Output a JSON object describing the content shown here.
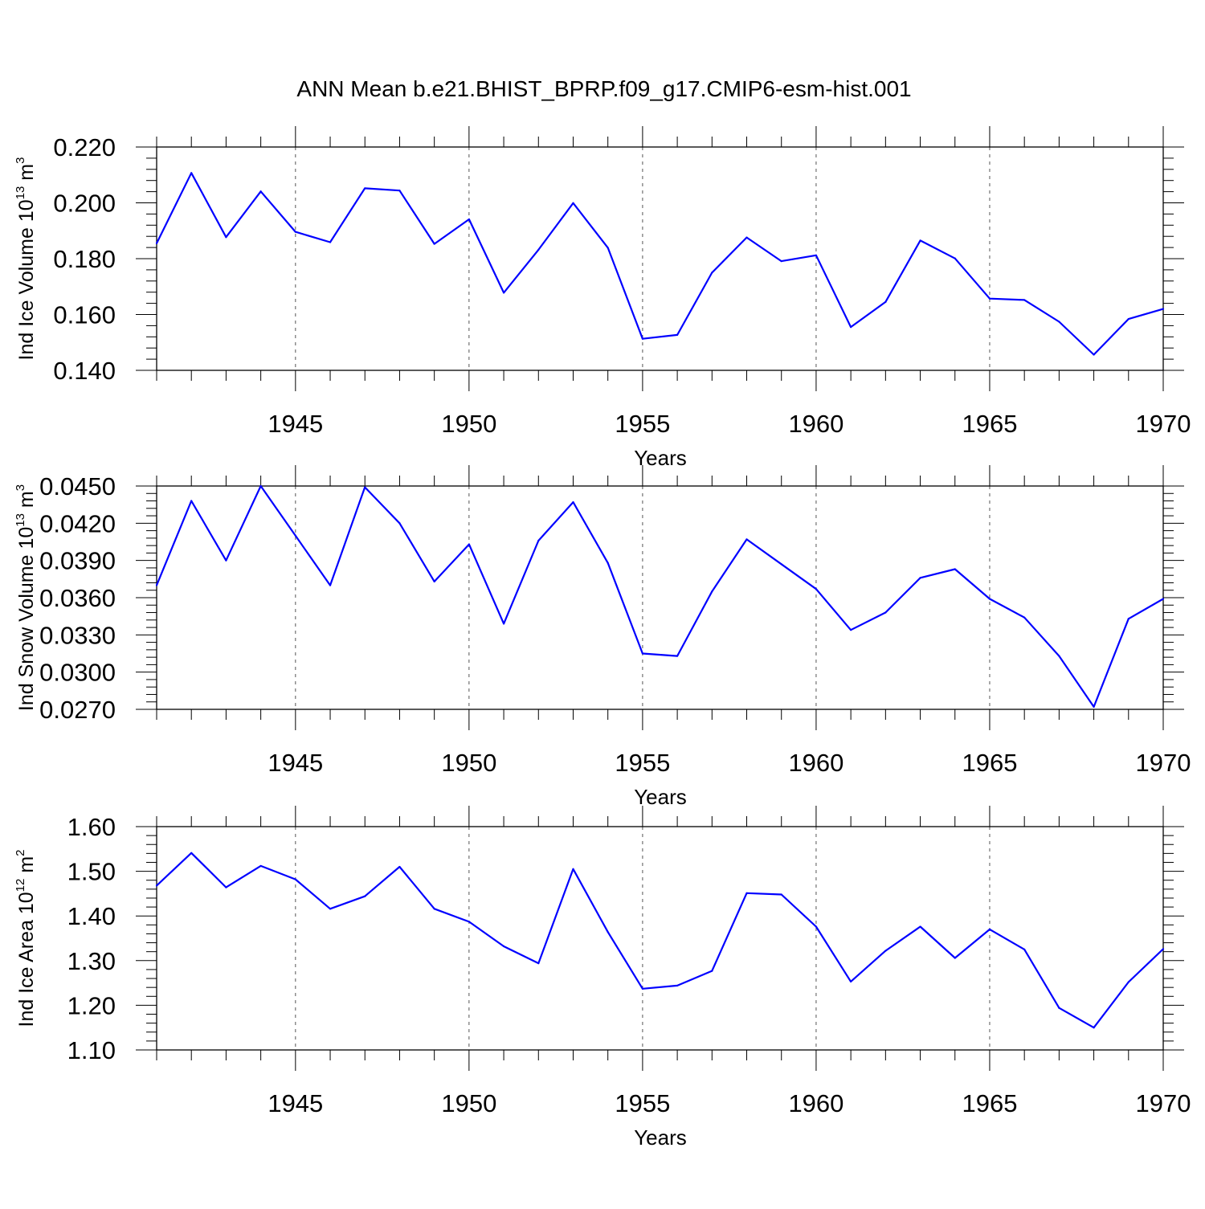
{
  "title": "ANN Mean b.e21.BHIST_BPRP.f09_g17.CMIP6-esm-hist.001",
  "colors": {
    "line": "#0000ff",
    "axis": "#000000",
    "grid": "#555555"
  },
  "chart_data": [
    {
      "type": "line",
      "ylabel": {
        "text": "Ind Ice Volume 10",
        "sup": "13",
        "unit": " m",
        "unit_sup": "3"
      },
      "xlabel": "Years",
      "xlim": [
        1941,
        1970
      ],
      "ylim": [
        0.14,
        0.22
      ],
      "yticks": [
        0.14,
        0.16,
        0.18,
        0.2,
        0.22
      ],
      "yticklabels": [
        "0.140",
        "0.160",
        "0.180",
        "0.200",
        "0.220"
      ],
      "xticks": [
        1945,
        1950,
        1955,
        1960,
        1965,
        1970
      ],
      "xticklabels": [
        "1945",
        "1950",
        "1955",
        "1960",
        "1965",
        "1970"
      ],
      "grid": "vertical dashed at major x ticks",
      "x": [
        1941,
        1942,
        1943,
        1944,
        1945,
        1946,
        1947,
        1948,
        1949,
        1950,
        1951,
        1952,
        1953,
        1954,
        1955,
        1956,
        1957,
        1958,
        1959,
        1960,
        1961,
        1962,
        1963,
        1964,
        1965,
        1966,
        1967,
        1968,
        1969,
        1970
      ],
      "series": [
        {
          "values": [
            0.1855,
            0.2107,
            0.1877,
            0.2041,
            0.1896,
            0.1859,
            0.2052,
            0.2044,
            0.1853,
            0.1941,
            0.1678,
            0.1832,
            0.1999,
            0.1839,
            0.1513,
            0.1527,
            0.175,
            0.1876,
            0.1791,
            0.1812,
            0.1555,
            0.1645,
            0.1865,
            0.1801,
            0.1657,
            0.1652,
            0.1574,
            0.1456,
            0.1584,
            0.162
          ]
        }
      ]
    },
    {
      "type": "line",
      "ylabel": {
        "text": "Ind Snow Volume 10",
        "sup": "13",
        "unit": " m",
        "unit_sup": "3"
      },
      "xlabel": "Years",
      "xlim": [
        1941,
        1970
      ],
      "ylim": [
        0.027,
        0.045
      ],
      "yticks": [
        0.027,
        0.03,
        0.033,
        0.036,
        0.039,
        0.042,
        0.045
      ],
      "yticklabels": [
        "0.0270",
        "0.0300",
        "0.0330",
        "0.0360",
        "0.0390",
        "0.0420",
        "0.0450"
      ],
      "xticks": [
        1945,
        1950,
        1955,
        1960,
        1965,
        1970
      ],
      "xticklabels": [
        "1945",
        "1950",
        "1955",
        "1960",
        "1965",
        "1970"
      ],
      "grid": "vertical dashed at major x ticks",
      "x": [
        1941,
        1942,
        1943,
        1944,
        1945,
        1946,
        1947,
        1948,
        1949,
        1950,
        1951,
        1952,
        1953,
        1954,
        1955,
        1956,
        1957,
        1958,
        1959,
        1960,
        1961,
        1962,
        1963,
        1964,
        1965,
        1966,
        1967,
        1968,
        1969,
        1970
      ],
      "series": [
        {
          "values": [
            0.037,
            0.0438,
            0.039,
            0.045,
            0.041,
            0.037,
            0.0449,
            0.042,
            0.0373,
            0.0403,
            0.0339,
            0.0406,
            0.0437,
            0.0388,
            0.0315,
            0.0313,
            0.0365,
            0.0407,
            0.0387,
            0.0367,
            0.0334,
            0.0348,
            0.0376,
            0.0383,
            0.0359,
            0.0344,
            0.0313,
            0.0272,
            0.0343,
            0.0359
          ]
        }
      ]
    },
    {
      "type": "line",
      "ylabel": {
        "text": "Ind Ice Area 10",
        "sup": "12",
        "unit": " m",
        "unit_sup": "2"
      },
      "xlabel": "Years",
      "xlim": [
        1941,
        1970
      ],
      "ylim": [
        1.1,
        1.6
      ],
      "yticks": [
        1.1,
        1.2,
        1.3,
        1.4,
        1.5,
        1.6
      ],
      "yticklabels": [
        "1.10",
        "1.20",
        "1.30",
        "1.40",
        "1.50",
        "1.60"
      ],
      "xticks": [
        1945,
        1950,
        1955,
        1960,
        1965,
        1970
      ],
      "xticklabels": [
        "1945",
        "1950",
        "1955",
        "1960",
        "1965",
        "1970"
      ],
      "grid": "vertical dashed at major x ticks",
      "x": [
        1941,
        1942,
        1943,
        1944,
        1945,
        1946,
        1947,
        1948,
        1949,
        1950,
        1951,
        1952,
        1953,
        1954,
        1955,
        1956,
        1957,
        1958,
        1959,
        1960,
        1961,
        1962,
        1963,
        1964,
        1965,
        1966,
        1967,
        1968,
        1969,
        1970
      ],
      "series": [
        {
          "values": [
            1.468,
            1.541,
            1.464,
            1.512,
            1.482,
            1.416,
            1.444,
            1.51,
            1.416,
            1.387,
            1.332,
            1.294,
            1.505,
            1.364,
            1.237,
            1.244,
            1.277,
            1.451,
            1.448,
            1.376,
            1.253,
            1.322,
            1.376,
            1.306,
            1.37,
            1.325,
            1.194,
            1.15,
            1.252,
            1.326
          ]
        }
      ]
    }
  ]
}
